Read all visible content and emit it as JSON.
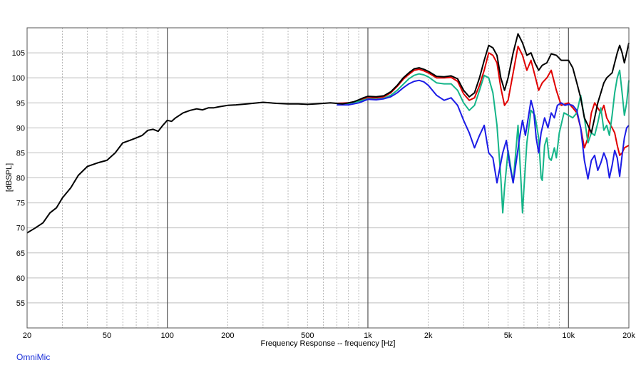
{
  "brand": "OmniMic",
  "chart_data": {
    "type": "line",
    "title": "",
    "xlabel": "Frequency Response -- frequency [Hz]",
    "ylabel": "[dBSPL]",
    "x_scale": "log",
    "xlim": [
      20,
      20000
    ],
    "ylim": [
      50,
      110
    ],
    "grid": true,
    "legend": "none",
    "x_ticks": [
      {
        "v": 20,
        "label": "20"
      },
      {
        "v": 50,
        "label": "50"
      },
      {
        "v": 100,
        "label": "100"
      },
      {
        "v": 200,
        "label": "200"
      },
      {
        "v": 500,
        "label": "500"
      },
      {
        "v": 1000,
        "label": "1k"
      },
      {
        "v": 2000,
        "label": "2k"
      },
      {
        "v": 5000,
        "label": "5k"
      },
      {
        "v": 10000,
        "label": "10k"
      },
      {
        "v": 20000,
        "label": "20k"
      }
    ],
    "y_ticks": [
      55,
      60,
      65,
      70,
      75,
      80,
      85,
      90,
      95,
      100,
      105
    ],
    "series": [
      {
        "color": "#000000",
        "points": [
          [
            20,
            69
          ],
          [
            22,
            70
          ],
          [
            24,
            71
          ],
          [
            26,
            73
          ],
          [
            28,
            74
          ],
          [
            30,
            76
          ],
          [
            33,
            78
          ],
          [
            36,
            80.5
          ],
          [
            40,
            82.3
          ],
          [
            45,
            83
          ],
          [
            50,
            83.5
          ],
          [
            55,
            85
          ],
          [
            60,
            87
          ],
          [
            65,
            87.5
          ],
          [
            70,
            88
          ],
          [
            75,
            88.5
          ],
          [
            80,
            89.5
          ],
          [
            85,
            89.7
          ],
          [
            90,
            89.3
          ],
          [
            95,
            90.5
          ],
          [
            100,
            91.5
          ],
          [
            105,
            91.3
          ],
          [
            110,
            92
          ],
          [
            120,
            93
          ],
          [
            130,
            93.5
          ],
          [
            140,
            93.8
          ],
          [
            150,
            93.6
          ],
          [
            160,
            94
          ],
          [
            170,
            94
          ],
          [
            180,
            94.2
          ],
          [
            200,
            94.5
          ],
          [
            220,
            94.6
          ],
          [
            250,
            94.8
          ],
          [
            300,
            95.1
          ],
          [
            350,
            94.9
          ],
          [
            400,
            94.8
          ],
          [
            450,
            94.8
          ],
          [
            500,
            94.7
          ],
          [
            550,
            94.8
          ],
          [
            600,
            94.9
          ],
          [
            650,
            95
          ],
          [
            700,
            94.9
          ],
          [
            750,
            94.8
          ],
          [
            800,
            95
          ],
          [
            850,
            95.2
          ],
          [
            900,
            95.6
          ],
          [
            950,
            96
          ],
          [
            1000,
            96.3
          ],
          [
            1100,
            96.2
          ],
          [
            1200,
            96.4
          ],
          [
            1300,
            97.2
          ],
          [
            1400,
            98.5
          ],
          [
            1500,
            100
          ],
          [
            1600,
            101
          ],
          [
            1700,
            101.8
          ],
          [
            1800,
            102
          ],
          [
            1900,
            101.7
          ],
          [
            2000,
            101.3
          ],
          [
            2200,
            100.3
          ],
          [
            2400,
            100.2
          ],
          [
            2600,
            100.4
          ],
          [
            2800,
            99.8
          ],
          [
            3000,
            97.5
          ],
          [
            3200,
            96.2
          ],
          [
            3400,
            97
          ],
          [
            3600,
            100
          ],
          [
            3800,
            103.5
          ],
          [
            4000,
            106.5
          ],
          [
            4200,
            106
          ],
          [
            4400,
            104.5
          ],
          [
            4600,
            100
          ],
          [
            4800,
            97.5
          ],
          [
            5000,
            100
          ],
          [
            5300,
            105
          ],
          [
            5600,
            108.8
          ],
          [
            5900,
            107
          ],
          [
            6200,
            104.5
          ],
          [
            6500,
            105
          ],
          [
            6800,
            103
          ],
          [
            7100,
            101.5
          ],
          [
            7400,
            102.5
          ],
          [
            7800,
            103
          ],
          [
            8200,
            104.8
          ],
          [
            8700,
            104.5
          ],
          [
            9200,
            103.5
          ],
          [
            10000,
            103.5
          ],
          [
            10500,
            102
          ],
          [
            11000,
            99
          ],
          [
            11500,
            96
          ],
          [
            12000,
            92
          ],
          [
            12500,
            90.5
          ],
          [
            13000,
            89
          ],
          [
            13500,
            92
          ],
          [
            14000,
            95
          ],
          [
            14500,
            97
          ],
          [
            15000,
            99
          ],
          [
            15500,
            100
          ],
          [
            16000,
            100.5
          ],
          [
            16500,
            101
          ],
          [
            17000,
            103
          ],
          [
            17500,
            105
          ],
          [
            18000,
            106.5
          ],
          [
            18500,
            105
          ],
          [
            19000,
            103
          ],
          [
            19500,
            105
          ],
          [
            20000,
            107
          ]
        ]
      },
      {
        "color": "#e00000",
        "points": [
          [
            700,
            94.9
          ],
          [
            800,
            95
          ],
          [
            900,
            95.4
          ],
          [
            1000,
            96
          ],
          [
            1100,
            96
          ],
          [
            1200,
            96.2
          ],
          [
            1300,
            97
          ],
          [
            1400,
            98.3
          ],
          [
            1500,
            99.7
          ],
          [
            1600,
            100.7
          ],
          [
            1700,
            101.5
          ],
          [
            1800,
            101.7
          ],
          [
            1900,
            101.4
          ],
          [
            2000,
            101
          ],
          [
            2200,
            100
          ],
          [
            2400,
            100
          ],
          [
            2600,
            100.1
          ],
          [
            2800,
            99.3
          ],
          [
            3000,
            96.8
          ],
          [
            3200,
            95.5
          ],
          [
            3400,
            96
          ],
          [
            3600,
            98.5
          ],
          [
            3800,
            101.5
          ],
          [
            4000,
            105
          ],
          [
            4200,
            104.5
          ],
          [
            4400,
            103
          ],
          [
            4600,
            98
          ],
          [
            4800,
            94.5
          ],
          [
            5000,
            95.5
          ],
          [
            5300,
            101
          ],
          [
            5600,
            106.3
          ],
          [
            5900,
            104.5
          ],
          [
            6200,
            101.5
          ],
          [
            6500,
            103.5
          ],
          [
            6800,
            100.5
          ],
          [
            7100,
            97.5
          ],
          [
            7400,
            99
          ],
          [
            7800,
            100
          ],
          [
            8200,
            101.5
          ],
          [
            8700,
            97.5
          ],
          [
            9200,
            94.5
          ],
          [
            10000,
            95
          ],
          [
            10500,
            94
          ],
          [
            11000,
            93
          ],
          [
            11500,
            90
          ],
          [
            12000,
            86
          ],
          [
            12500,
            88
          ],
          [
            13000,
            93
          ],
          [
            13500,
            95
          ],
          [
            14000,
            94
          ],
          [
            14500,
            93
          ],
          [
            15000,
            94.5
          ],
          [
            15500,
            92
          ],
          [
            16000,
            91
          ],
          [
            16500,
            90
          ],
          [
            17000,
            89
          ],
          [
            17500,
            86.5
          ],
          [
            18000,
            84.5
          ],
          [
            18500,
            85
          ],
          [
            19000,
            86
          ],
          [
            20000,
            86.5
          ]
        ]
      },
      {
        "color": "#15b589",
        "points": [
          [
            700,
            94.8
          ],
          [
            800,
            94.9
          ],
          [
            900,
            95.3
          ],
          [
            1000,
            95.8
          ],
          [
            1100,
            95.7
          ],
          [
            1200,
            95.9
          ],
          [
            1300,
            96.5
          ],
          [
            1400,
            97.5
          ],
          [
            1500,
            98.7
          ],
          [
            1600,
            99.8
          ],
          [
            1700,
            100.5
          ],
          [
            1800,
            100.8
          ],
          [
            1900,
            100.6
          ],
          [
            2000,
            100.2
          ],
          [
            2200,
            99
          ],
          [
            2400,
            98.8
          ],
          [
            2600,
            98.8
          ],
          [
            2800,
            97.5
          ],
          [
            3000,
            95
          ],
          [
            3200,
            93.5
          ],
          [
            3400,
            94.5
          ],
          [
            3600,
            97.5
          ],
          [
            3800,
            100.5
          ],
          [
            4000,
            100
          ],
          [
            4200,
            97
          ],
          [
            4400,
            90.5
          ],
          [
            4600,
            80
          ],
          [
            4700,
            73
          ],
          [
            4800,
            78
          ],
          [
            5000,
            85.5
          ],
          [
            5300,
            79
          ],
          [
            5600,
            90.5
          ],
          [
            5800,
            79
          ],
          [
            5900,
            73
          ],
          [
            6000,
            78
          ],
          [
            6200,
            87
          ],
          [
            6500,
            93.5
          ],
          [
            6800,
            92.5
          ],
          [
            7100,
            88
          ],
          [
            7300,
            80
          ],
          [
            7400,
            79.5
          ],
          [
            7600,
            86.5
          ],
          [
            7800,
            88
          ],
          [
            8000,
            84
          ],
          [
            8200,
            83.5
          ],
          [
            8500,
            86
          ],
          [
            8700,
            84
          ],
          [
            9000,
            89
          ],
          [
            9500,
            93
          ],
          [
            10000,
            92.5
          ],
          [
            10500,
            92
          ],
          [
            11000,
            93
          ],
          [
            11500,
            96.5
          ],
          [
            12000,
            92
          ],
          [
            12500,
            87
          ],
          [
            13000,
            89
          ],
          [
            13500,
            88.5
          ],
          [
            14000,
            91
          ],
          [
            14500,
            94
          ],
          [
            15000,
            89.5
          ],
          [
            15500,
            90.5
          ],
          [
            16000,
            88.5
          ],
          [
            16500,
            92.5
          ],
          [
            17000,
            97
          ],
          [
            17500,
            100
          ],
          [
            18000,
            101.5
          ],
          [
            18500,
            97
          ],
          [
            19000,
            92.5
          ],
          [
            19500,
            95
          ],
          [
            20000,
            99.5
          ]
        ]
      },
      {
        "color": "#1c1ce6",
        "points": [
          [
            700,
            94.6
          ],
          [
            800,
            94.6
          ],
          [
            900,
            95
          ],
          [
            1000,
            95.7
          ],
          [
            1100,
            95.6
          ],
          [
            1200,
            95.8
          ],
          [
            1300,
            96.2
          ],
          [
            1400,
            97
          ],
          [
            1500,
            98
          ],
          [
            1600,
            98.8
          ],
          [
            1700,
            99.3
          ],
          [
            1800,
            99.5
          ],
          [
            1900,
            99.2
          ],
          [
            2000,
            98.5
          ],
          [
            2200,
            96.5
          ],
          [
            2400,
            95.5
          ],
          [
            2600,
            96
          ],
          [
            2800,
            94.5
          ],
          [
            3000,
            91.5
          ],
          [
            3200,
            89
          ],
          [
            3400,
            86
          ],
          [
            3600,
            88.5
          ],
          [
            3800,
            90.5
          ],
          [
            4000,
            85
          ],
          [
            4200,
            84
          ],
          [
            4400,
            79
          ],
          [
            4500,
            81
          ],
          [
            4700,
            85
          ],
          [
            4900,
            87.5
          ],
          [
            5100,
            82.5
          ],
          [
            5300,
            79
          ],
          [
            5500,
            83.5
          ],
          [
            5700,
            88
          ],
          [
            5900,
            91.5
          ],
          [
            6100,
            88.5
          ],
          [
            6300,
            92
          ],
          [
            6500,
            95.5
          ],
          [
            6700,
            93.5
          ],
          [
            6900,
            88
          ],
          [
            7100,
            85
          ],
          [
            7300,
            89
          ],
          [
            7600,
            92
          ],
          [
            7900,
            90
          ],
          [
            8200,
            93
          ],
          [
            8500,
            92
          ],
          [
            8800,
            94.5
          ],
          [
            9200,
            95
          ],
          [
            9600,
            94.5
          ],
          [
            10000,
            94.7
          ],
          [
            10500,
            94.5
          ],
          [
            11000,
            93.5
          ],
          [
            11500,
            90
          ],
          [
            12000,
            83.5
          ],
          [
            12500,
            79.8
          ],
          [
            13000,
            83.5
          ],
          [
            13500,
            84.5
          ],
          [
            14000,
            81.5
          ],
          [
            14500,
            83
          ],
          [
            15000,
            85
          ],
          [
            15500,
            83.5
          ],
          [
            16000,
            80
          ],
          [
            16500,
            82.5
          ],
          [
            17000,
            85.5
          ],
          [
            17500,
            84
          ],
          [
            18000,
            80.3
          ],
          [
            18500,
            84.5
          ],
          [
            19000,
            88
          ],
          [
            19500,
            90
          ],
          [
            20000,
            90.5
          ]
        ]
      }
    ]
  }
}
